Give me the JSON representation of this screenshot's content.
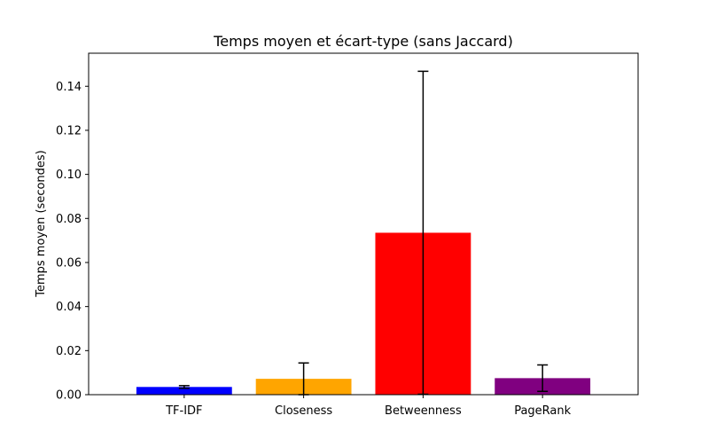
{
  "chart_data": {
    "type": "bar",
    "title": "Temps moyen et écart-type (sans Jaccard)",
    "xlabel": "",
    "ylabel": "Temps moyen (secondes)",
    "categories": [
      "TF-IDF",
      "Closeness",
      "Betweenness",
      "PageRank"
    ],
    "values": [
      0.0035,
      0.0072,
      0.0735,
      0.0075
    ],
    "errors": [
      0.0006,
      0.0072,
      0.0733,
      0.006
    ],
    "colors": [
      "#0000ff",
      "#ffa500",
      "#ff0000",
      "#800080"
    ],
    "ylim": [
      0,
      0.155
    ],
    "yticks": [
      0.0,
      0.02,
      0.04,
      0.06,
      0.08,
      0.1,
      0.12,
      0.14
    ],
    "ytick_labels": [
      "0.00",
      "0.02",
      "0.04",
      "0.06",
      "0.08",
      "0.10",
      "0.12",
      "0.14"
    ],
    "grid": false,
    "legend": false
  }
}
